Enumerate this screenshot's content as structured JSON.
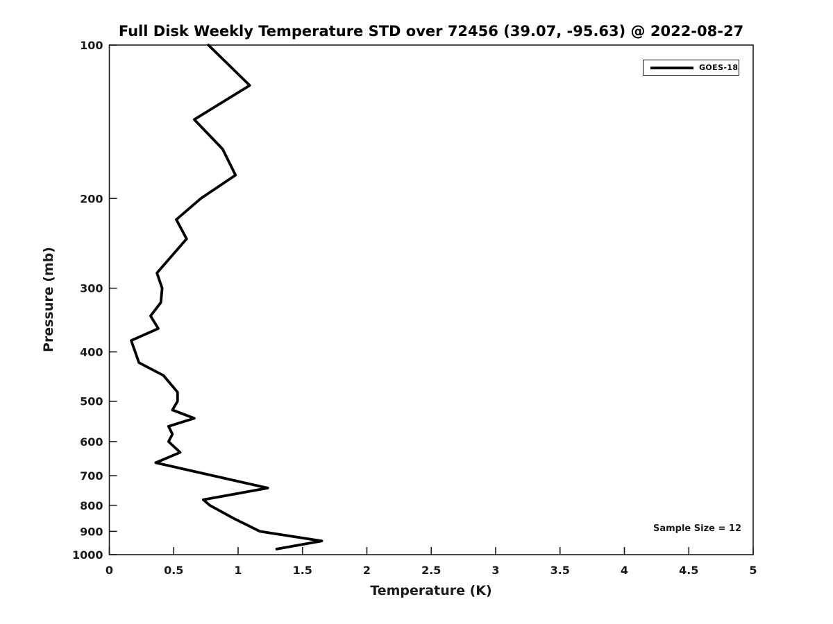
{
  "title": "Full Disk Weekly Temperature STD over 72456 (39.07, -95.63) @ 2022-08-27",
  "legend": {
    "label": "GOES-18",
    "line_color": "#000000"
  },
  "annotation": {
    "sample_size_text": "Sample Size = 12"
  },
  "chart_data": {
    "type": "line",
    "title": "Full Disk Weekly Temperature STD over 72456 (39.07, -95.63) @ 2022-08-27",
    "xlabel": "Temperature (K)",
    "ylabel": "Pressure (mb)",
    "xlim": [
      0,
      5
    ],
    "ylim": [
      100,
      1000
    ],
    "yscale": "log",
    "y_direction": "inverted",
    "grid": false,
    "legend_position": "top-right",
    "x_ticks": {
      "values": [
        0,
        0.5,
        1,
        1.5,
        2,
        2.5,
        3,
        3.5,
        4,
        4.5,
        5
      ],
      "labels": [
        "0",
        "0.5",
        "1",
        "1.5",
        "2",
        "2.5",
        "3",
        "3.5",
        "4",
        "4.5",
        "5"
      ]
    },
    "y_ticks": {
      "values": [
        100,
        200,
        300,
        400,
        500,
        600,
        700,
        800,
        900,
        1000
      ],
      "labels": [
        "100",
        "200",
        "300",
        "400",
        "500",
        "600",
        "700",
        "800",
        "900",
        "1000"
      ]
    },
    "series": [
      {
        "name": "GOES-18",
        "color": "#000000",
        "pressure_mb": [
          100,
          120,
          140,
          160,
          180,
          200,
          220,
          240,
          280,
          300,
          320,
          340,
          360,
          380,
          420,
          445,
          480,
          500,
          520,
          540,
          560,
          580,
          600,
          630,
          660,
          740,
          780,
          800,
          850,
          900,
          940,
          975
        ],
        "temperature_std_K": [
          0.77,
          1.09,
          0.66,
          0.88,
          0.98,
          0.71,
          0.52,
          0.6,
          0.37,
          0.41,
          0.4,
          0.32,
          0.38,
          0.17,
          0.23,
          0.42,
          0.53,
          0.53,
          0.49,
          0.66,
          0.46,
          0.49,
          0.46,
          0.55,
          0.36,
          1.23,
          0.73,
          0.78,
          0.97,
          1.17,
          1.65,
          1.3
        ]
      }
    ],
    "annotations": [
      {
        "text": "Sample Size = 12",
        "position": "bottom-right-inside"
      }
    ]
  }
}
